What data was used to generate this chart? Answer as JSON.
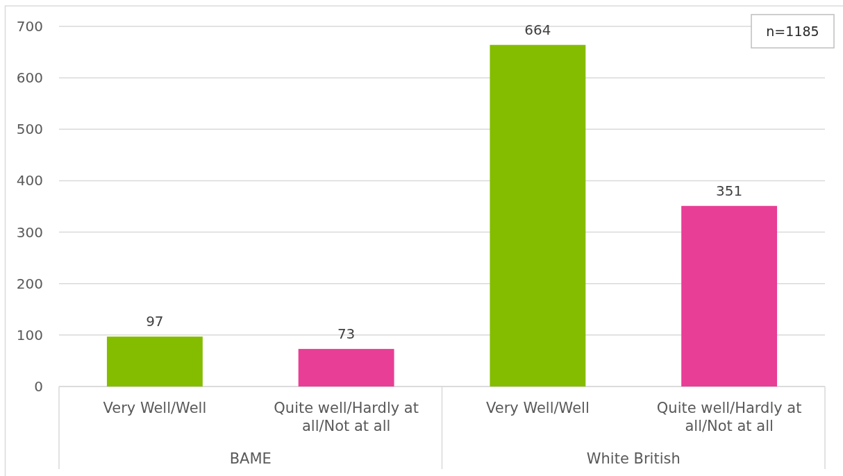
{
  "chart_data": {
    "type": "bar",
    "categories": [
      "Very Well/Well",
      "Quite well/Hardly at all/Not at all",
      "Very Well/Well",
      "Quite well/Hardly at all/Not at all"
    ],
    "values": [
      97,
      73,
      664,
      351
    ],
    "colors": [
      "#84bd00",
      "#e83e96",
      "#84bd00",
      "#e83e96"
    ],
    "ylim": [
      0,
      700
    ],
    "yticks": [
      0,
      100,
      200,
      300,
      400,
      500,
      600,
      700
    ],
    "grid": "y",
    "data_labels": true,
    "annotations": [
      "n=1185",
      "BAME",
      "White British"
    ]
  }
}
